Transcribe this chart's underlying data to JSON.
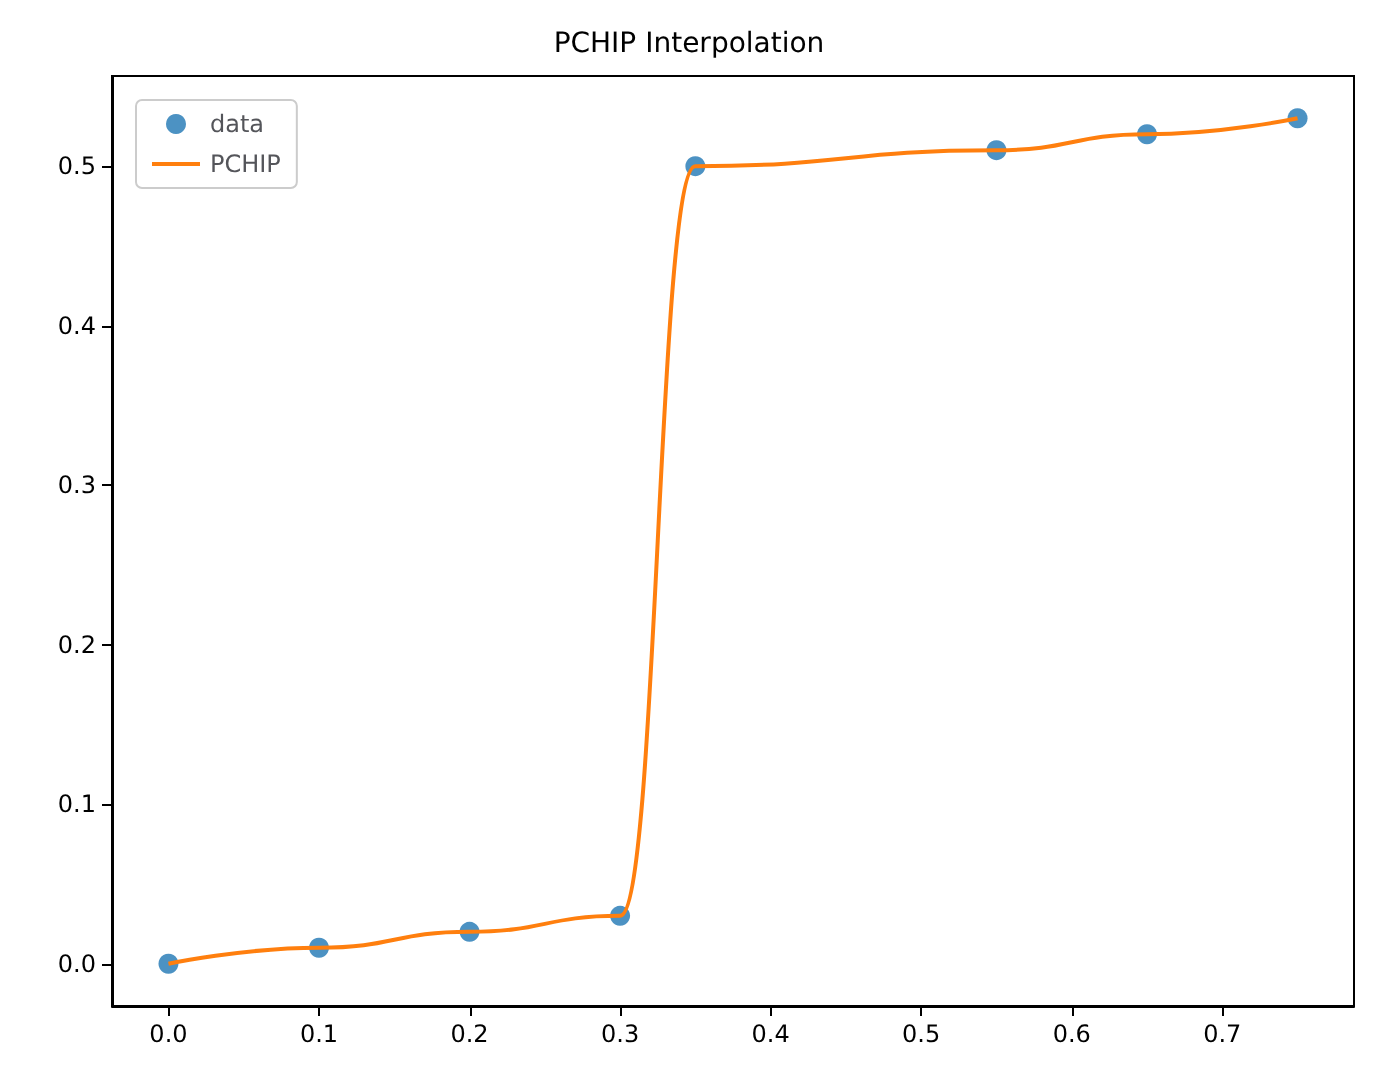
{
  "chart_data": {
    "type": "scatter",
    "title": "PCHIP Interpolation",
    "x": [
      0,
      0.1,
      0.2,
      0.3,
      0.35,
      0.55,
      0.65,
      0.75
    ],
    "series": [
      {
        "name": "data",
        "color": "#1f77b4",
        "marker": "circle",
        "values": [
          0,
          0.01,
          0.02,
          0.03,
          0.5,
          0.51,
          0.52,
          0.53
        ]
      },
      {
        "name": "PCHIP",
        "type": "line",
        "color": "#ff7f0e",
        "marker": "none",
        "line_style": "solid",
        "values": [
          0,
          0.01,
          0.02,
          0.03,
          0.5,
          0.51,
          0.52,
          0.53
        ]
      }
    ],
    "xlim": [
      -0.0375,
      0.7875
    ],
    "xticks": [
      {
        "value": 0,
        "label": "0.0"
      },
      0.1,
      0.2,
      0.3,
      0.4,
      0.5,
      0.6,
      0.7
    ],
    "ylim": [
      -0.0265,
      0.5565
    ],
    "yticks": [
      {
        "value": 0,
        "label": "0.0"
      },
      0.1,
      0.2,
      0.3,
      0.4,
      0.5
    ],
    "grid": false,
    "legend": "top left"
  }
}
